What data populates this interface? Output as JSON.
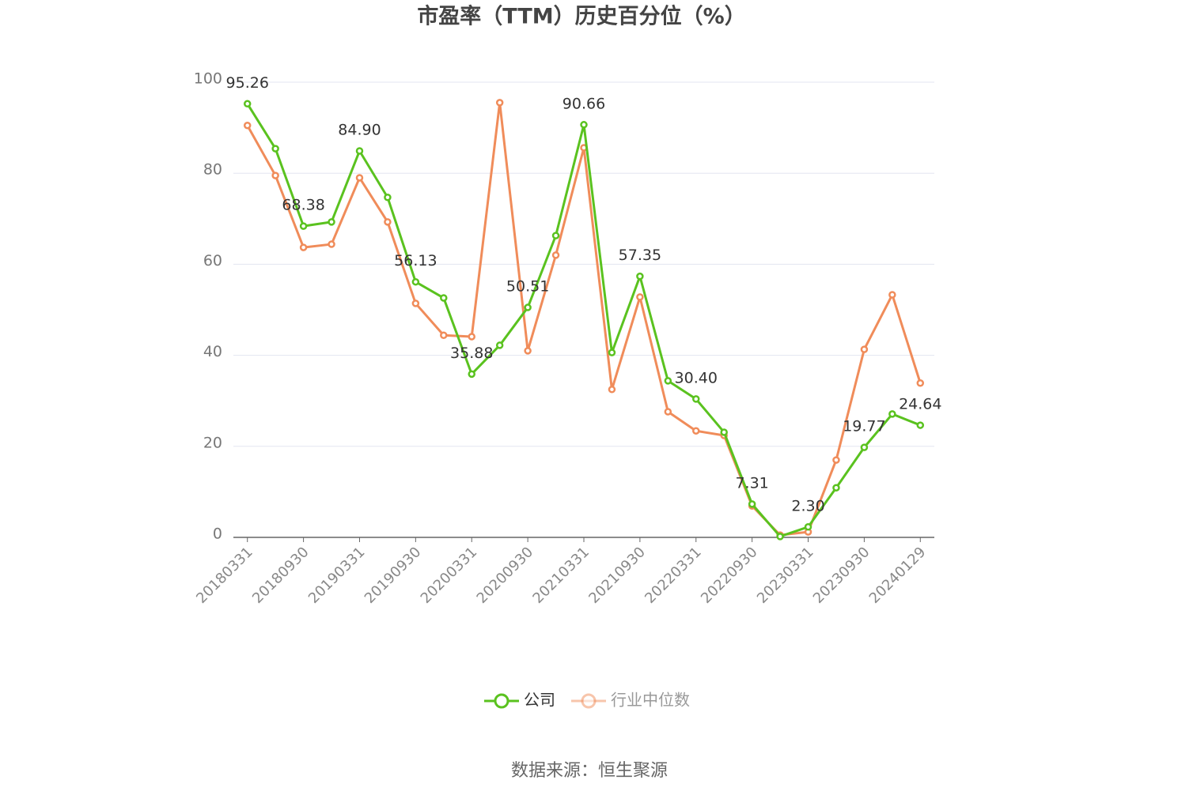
{
  "chart_data": {
    "type": "line",
    "title": "市盈率（TTM）历史百分位（%）",
    "categories": [
      "20180331",
      null,
      "20180930",
      null,
      "20190331",
      null,
      "20190930",
      null,
      "20200331",
      null,
      "20200930",
      null,
      "20210331",
      null,
      "20210930",
      null,
      "20220331",
      null,
      "20220930",
      null,
      "20230331",
      null,
      "20230930",
      null,
      "20240129"
    ],
    "series": [
      {
        "name": "公司",
        "color": "#5ac21f",
        "values": [
          95.26,
          85.4,
          68.38,
          69.3,
          84.9,
          74.7,
          56.13,
          52.6,
          35.88,
          42.2,
          50.51,
          66.3,
          90.66,
          40.6,
          57.35,
          34.4,
          30.4,
          23.1,
          7.31,
          0.2,
          2.3,
          10.9,
          19.77,
          27.1,
          24.64
        ],
        "value_labels": [
          "95.26",
          null,
          "68.38",
          null,
          "84.90",
          null,
          "56.13",
          null,
          "35.88",
          null,
          "50.51",
          null,
          "90.66",
          null,
          "57.35",
          null,
          "30.40",
          null,
          "7.31",
          null,
          "2.30",
          null,
          "19.77",
          null,
          "24.64"
        ]
      },
      {
        "name": "行业中位数",
        "color": "#f08c5a",
        "values": [
          90.5,
          79.5,
          63.7,
          64.4,
          79.0,
          69.3,
          51.4,
          44.4,
          44.1,
          95.5,
          41.0,
          62.0,
          85.6,
          32.5,
          52.8,
          27.6,
          23.4,
          22.4,
          6.9,
          0.5,
          1.2,
          17.0,
          41.3,
          53.3,
          33.9
        ]
      }
    ],
    "ylim": [
      0,
      100
    ],
    "yticks": [
      0,
      20,
      40,
      60,
      80,
      100
    ],
    "grid": true,
    "legend": "bottom",
    "source": "数据来源：恒生聚源"
  }
}
